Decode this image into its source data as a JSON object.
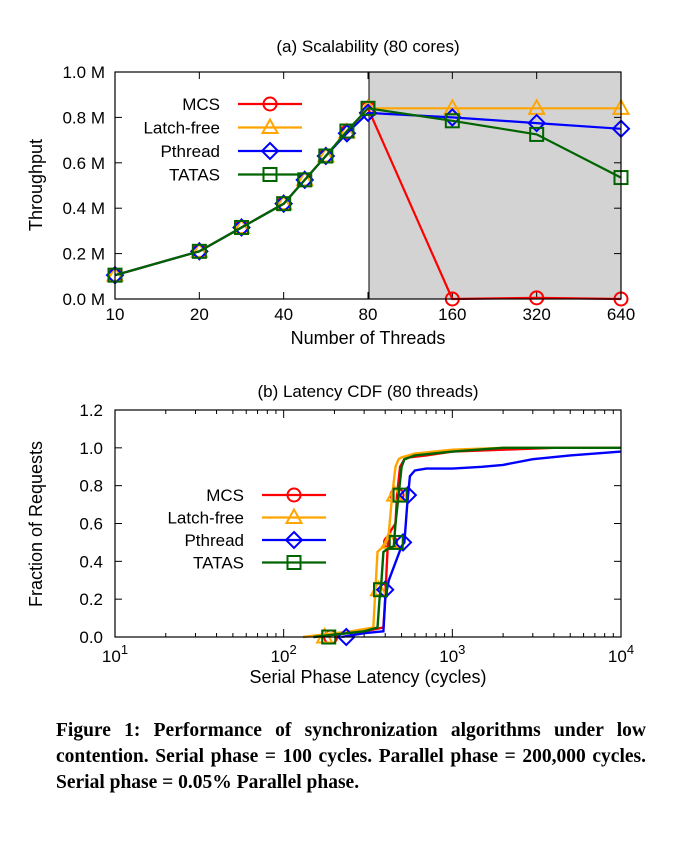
{
  "chart_data": [
    {
      "type": "line",
      "title": "(a) Scalability (80 cores)",
      "xlabel": "Number of Threads",
      "ylabel": "Throughput",
      "x_categories": [
        "10",
        "20",
        "40",
        "80",
        "160",
        "320",
        "640"
      ],
      "y_ticks": [
        "0.0 M",
        "0.2 M",
        "0.4 M",
        "0.6 M",
        "0.8 M",
        "1.0 M"
      ],
      "ylim": [
        0,
        1.0
      ],
      "y_unit": "M",
      "shaded_region_x": [
        80,
        640
      ],
      "legend_position": "top-left",
      "series": [
        {
          "name": "MCS",
          "color": "#ff0000",
          "marker": "circle",
          "x": [
            10,
            20,
            30,
            40,
            50,
            60,
            70,
            80,
            160,
            320,
            640
          ],
          "y": [
            0.105,
            0.21,
            0.315,
            0.42,
            0.525,
            0.63,
            0.735,
            0.84,
            0.0,
            0.005,
            0.0
          ]
        },
        {
          "name": "Latch-free",
          "color": "#ffa500",
          "marker": "triangle",
          "x": [
            10,
            20,
            30,
            40,
            50,
            60,
            70,
            80,
            160,
            320,
            640
          ],
          "y": [
            0.105,
            0.21,
            0.315,
            0.42,
            0.525,
            0.63,
            0.735,
            0.84,
            0.84,
            0.84,
            0.84
          ]
        },
        {
          "name": "Pthread",
          "color": "#0000ff",
          "marker": "diamond",
          "x": [
            10,
            20,
            30,
            40,
            50,
            60,
            70,
            80,
            160,
            320,
            640
          ],
          "y": [
            0.105,
            0.21,
            0.315,
            0.42,
            0.525,
            0.63,
            0.73,
            0.82,
            0.8,
            0.775,
            0.75
          ]
        },
        {
          "name": "TATAS",
          "color": "#006400",
          "marker": "square",
          "x": [
            10,
            20,
            30,
            40,
            50,
            60,
            70,
            80,
            160,
            320,
            640
          ],
          "y": [
            0.105,
            0.21,
            0.315,
            0.42,
            0.525,
            0.63,
            0.74,
            0.84,
            0.785,
            0.725,
            0.535
          ]
        }
      ]
    },
    {
      "type": "line",
      "title": "(b) Latency CDF (80 threads)",
      "xlabel": "Serial Phase Latency (cycles)",
      "ylabel": "Fraction of Requests",
      "x_scale": "log",
      "xlim": [
        10,
        10000
      ],
      "x_ticks": [
        {
          "base": "10",
          "exp": "1"
        },
        {
          "base": "10",
          "exp": "2"
        },
        {
          "base": "10",
          "exp": "3"
        },
        {
          "base": "10",
          "exp": "4"
        }
      ],
      "y_ticks": [
        "0.0",
        "0.2",
        "0.4",
        "0.6",
        "0.8",
        "1.0",
        "1.2"
      ],
      "ylim": [
        0,
        1.2
      ],
      "legend_position": "center-left",
      "series": [
        {
          "name": "MCS",
          "color": "#ff0000",
          "marker": "circle",
          "x": [
            150,
            300,
            390,
            400,
            410,
            415,
            430,
            460,
            470,
            490,
            520,
            560,
            700,
            1000,
            2000,
            4000,
            10000
          ],
          "y": [
            0.0,
            0.03,
            0.05,
            0.2,
            0.4,
            0.5,
            0.56,
            0.6,
            0.75,
            0.9,
            0.94,
            0.95,
            0.96,
            0.98,
            0.99,
            1.0,
            1.0
          ],
          "markers": [
            {
              "x": 190,
              "y": 0.0
            },
            {
              "x": 375,
              "y": 0.25
            },
            {
              "x": 430,
              "y": 0.5
            },
            {
              "x": 470,
              "y": 0.75
            }
          ]
        },
        {
          "name": "Latch-free",
          "color": "#ffa500",
          "marker": "triangle",
          "x": [
            130,
            250,
            340,
            350,
            360,
            380,
            400,
            420,
            440,
            460,
            480,
            500,
            600,
            1000,
            2000,
            10000
          ],
          "y": [
            0.0,
            0.03,
            0.05,
            0.25,
            0.45,
            0.47,
            0.5,
            0.55,
            0.75,
            0.9,
            0.94,
            0.95,
            0.97,
            0.99,
            1.0,
            1.0
          ],
          "markers": [
            {
              "x": 175,
              "y": 0.0
            },
            {
              "x": 365,
              "y": 0.25
            },
            {
              "x": 430,
              "y": 0.5
            },
            {
              "x": 455,
              "y": 0.75
            }
          ]
        },
        {
          "name": "Pthread",
          "color": "#0000ff",
          "marker": "diamond",
          "x": [
            220,
            300,
            390,
            400,
            410,
            420,
            500,
            520,
            540,
            560,
            600,
            700,
            1000,
            1500,
            2000,
            3000,
            5000,
            10000
          ],
          "y": [
            0.0,
            0.02,
            0.03,
            0.2,
            0.25,
            0.3,
            0.48,
            0.5,
            0.7,
            0.85,
            0.88,
            0.89,
            0.89,
            0.9,
            0.91,
            0.94,
            0.96,
            0.98
          ],
          "markers": [
            {
              "x": 235,
              "y": 0.0
            },
            {
              "x": 400,
              "y": 0.25
            },
            {
              "x": 510,
              "y": 0.5
            },
            {
              "x": 545,
              "y": 0.75
            }
          ]
        },
        {
          "name": "TATAS",
          "color": "#006400",
          "marker": "square",
          "x": [
            150,
            300,
            360,
            370,
            380,
            390,
            420,
            450,
            460,
            480,
            500,
            520,
            600,
            1000,
            2000,
            10000
          ],
          "y": [
            0.0,
            0.03,
            0.05,
            0.2,
            0.3,
            0.45,
            0.47,
            0.48,
            0.6,
            0.75,
            0.9,
            0.94,
            0.96,
            0.98,
            1.0,
            1.0
          ],
          "markers": [
            {
              "x": 185,
              "y": 0.0
            },
            {
              "x": 375,
              "y": 0.25
            },
            {
              "x": 465,
              "y": 0.5
            },
            {
              "x": 490,
              "y": 0.75
            }
          ]
        }
      ]
    }
  ],
  "caption": "Figure 1:  Performance of synchronization algorithms under low contention. Serial phase = 100 cycles. Parallel phase = 200,000 cycles. Serial phase = 0.05% Parallel phase."
}
